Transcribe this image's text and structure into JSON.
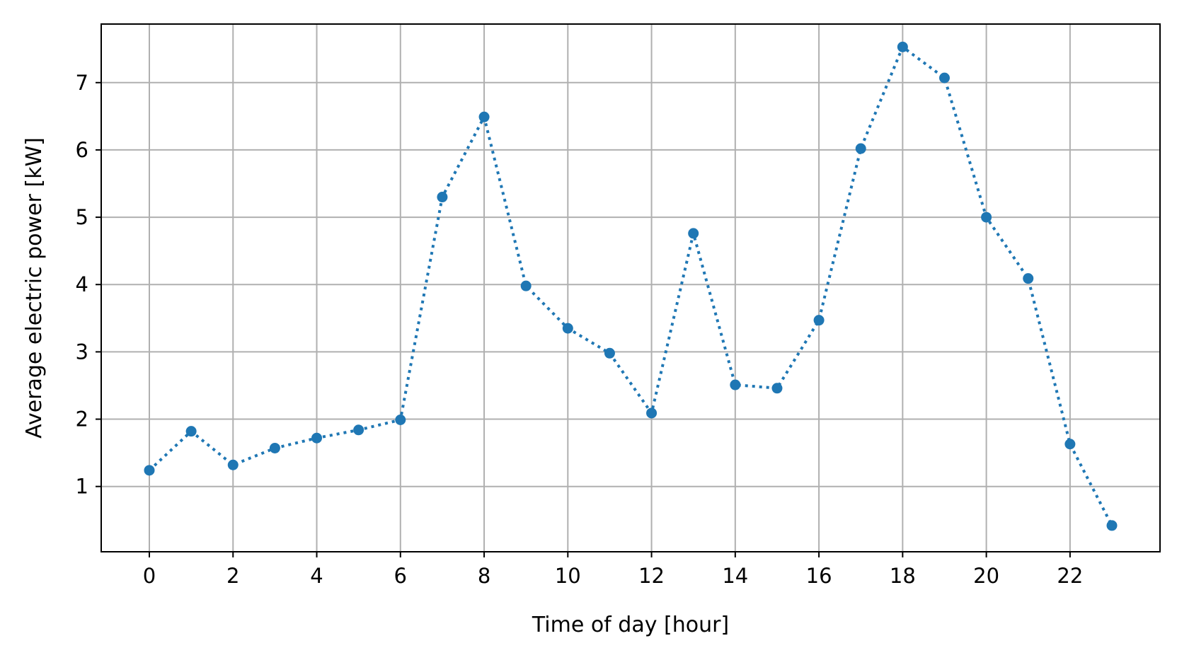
{
  "chart_data": {
    "type": "line",
    "title": "",
    "xlabel": "Time of day [hour]",
    "ylabel": "Average electric power [kW]",
    "xlim": [
      -1.15,
      24.15
    ],
    "ylim": [
      0.03,
      7.87
    ],
    "xticks": [
      0,
      2,
      4,
      6,
      8,
      10,
      12,
      14,
      16,
      18,
      20,
      22
    ],
    "yticks": [
      1,
      2,
      3,
      4,
      5,
      6,
      7
    ],
    "grid": true,
    "series": [
      {
        "color": "#1f77b4",
        "line_style": "dotted",
        "marker": "circle",
        "x": [
          0,
          1,
          2,
          3,
          4,
          5,
          6,
          7,
          8,
          9,
          10,
          11,
          12,
          13,
          14,
          15,
          16,
          17,
          18,
          19,
          20,
          21,
          22,
          23
        ],
        "y": [
          1.24,
          1.82,
          1.32,
          1.57,
          1.72,
          1.84,
          1.99,
          5.3,
          6.49,
          3.98,
          3.35,
          2.98,
          2.09,
          4.76,
          2.51,
          2.46,
          3.47,
          6.02,
          7.53,
          7.07,
          5.0,
          4.09,
          1.63,
          0.42
        ]
      }
    ],
    "colors": {
      "grid": "#b0b0b0",
      "axes": "#000000"
    }
  }
}
